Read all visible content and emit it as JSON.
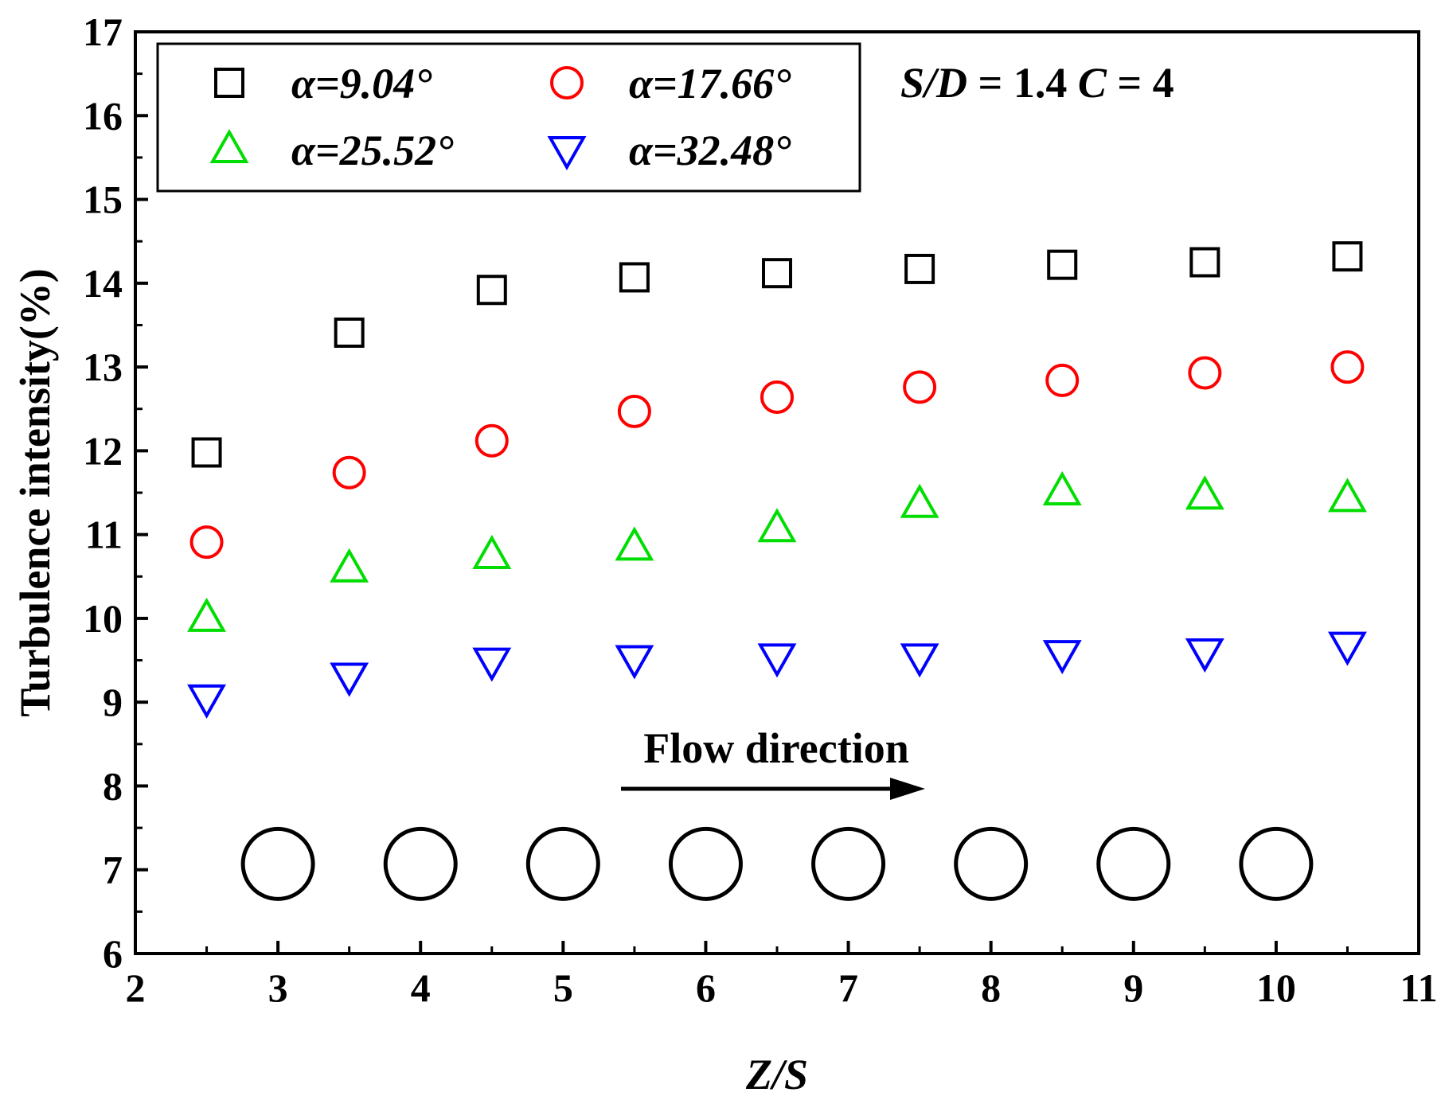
{
  "chart_data": {
    "type": "scatter",
    "xlabel": "Z/S",
    "ylabel": "Turbulence intensity(%)",
    "xlim": [
      2,
      11
    ],
    "ylim": [
      6,
      17
    ],
    "xticks": [
      2,
      3,
      4,
      5,
      6,
      7,
      8,
      9,
      10,
      11
    ],
    "yticks": [
      6,
      7,
      8,
      9,
      10,
      11,
      12,
      13,
      14,
      15,
      16,
      17
    ],
    "legend_position": "top-left",
    "grid": false,
    "annotation": "S/D = 1.4 C = 4",
    "flow_label": "Flow direction",
    "tube_centers_x": [
      3,
      4,
      5,
      6,
      7,
      8,
      9,
      10
    ],
    "tube_y": 7.07,
    "series": [
      {
        "name": "α=9.04°",
        "marker": "square",
        "color": "#000000",
        "x": [
          2.5,
          3.5,
          4.5,
          5.5,
          6.5,
          7.5,
          8.5,
          9.5,
          10.5
        ],
        "y": [
          11.98,
          13.41,
          13.92,
          14.07,
          14.12,
          14.17,
          14.22,
          14.25,
          14.32
        ]
      },
      {
        "name": "α=17.66°",
        "marker": "circle",
        "color": "#ff0000",
        "x": [
          2.5,
          3.5,
          4.5,
          5.5,
          6.5,
          7.5,
          8.5,
          9.5,
          10.5
        ],
        "y": [
          10.91,
          11.74,
          12.12,
          12.47,
          12.64,
          12.76,
          12.84,
          12.93,
          13.0
        ]
      },
      {
        "name": "α=25.52°",
        "marker": "triangle-up",
        "color": "#00dd00",
        "x": [
          2.5,
          3.5,
          4.5,
          5.5,
          6.5,
          7.5,
          8.5,
          9.5,
          10.5
        ],
        "y": [
          10.0,
          10.59,
          10.75,
          10.85,
          11.07,
          11.36,
          11.51,
          11.46,
          11.43
        ]
      },
      {
        "name": "α=32.48°",
        "marker": "triangle-down",
        "color": "#0000ff",
        "x": [
          2.5,
          3.5,
          4.5,
          5.5,
          6.5,
          7.5,
          8.5,
          9.5,
          10.5
        ],
        "y": [
          9.05,
          9.31,
          9.49,
          9.52,
          9.54,
          9.54,
          9.58,
          9.6,
          9.68
        ]
      }
    ]
  }
}
